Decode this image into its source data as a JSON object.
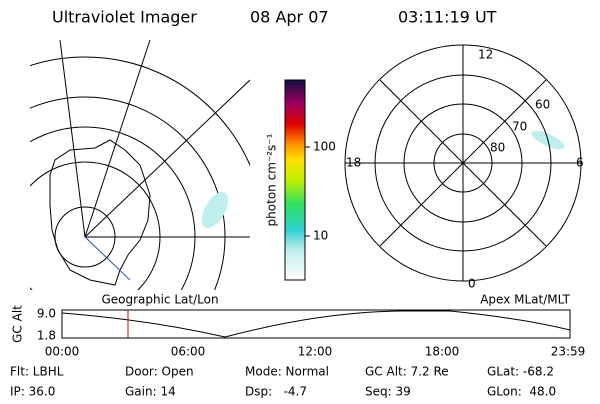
{
  "header": {
    "title": "Ultraviolet Imager",
    "date": "08 Apr 07",
    "time": "03:11:19 UT"
  },
  "colorbar": {
    "label": "photon cm⁻²s⁻¹",
    "ticks": [
      "100",
      "10"
    ]
  },
  "maps": {
    "left_label": "Geographic Lat/Lon",
    "right_label": "Apex MLat/MLT",
    "mlt_labels": [
      "12",
      "18",
      "6",
      "0"
    ],
    "mlat_labels": [
      "60",
      "70",
      "80"
    ]
  },
  "altitude": {
    "label": "GC Alt",
    "yticks": [
      "9.0",
      "1.8"
    ],
    "xticks": [
      "00:00",
      "06:00",
      "12:00",
      "18:00",
      "23:59"
    ]
  },
  "info": [
    [
      "Flt: LBHL",
      "Door: Open",
      "Mode: Normal",
      "GC Alt: 7.2 Re",
      "GLat: -68.2"
    ],
    [
      "IP: 36.0",
      "Gain: 14",
      "Dsp:   -4.7",
      "Seq: 39",
      "GLon:  48.0"
    ]
  ]
}
